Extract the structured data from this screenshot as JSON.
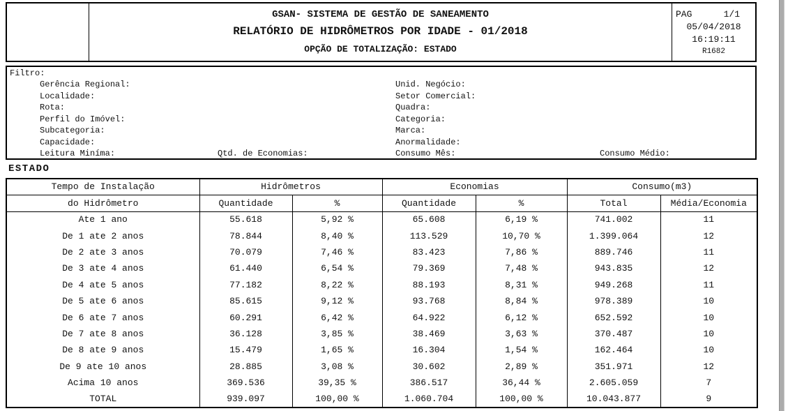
{
  "header": {
    "title_line1": "GSAN- SISTEMA DE GESTÃO DE SANEAMENTO",
    "title_line2": "RELATÓRIO DE HIDRÔMETROS POR IDADE - 01/2018",
    "title_line3": "OPÇÃO DE TOTALIZAÇÃO: ESTADO",
    "page_label": "PAG",
    "page_value": "1/1",
    "date": "05/04/2018",
    "time": "16:19:11",
    "report_code": "R1682"
  },
  "filter": {
    "label": "Filtro:",
    "left": [
      "Gerência Regional:",
      "Localidade:",
      "Rota:",
      "Perfil do Imóvel:",
      "Subcategoria:",
      "Capacidade:"
    ],
    "right": [
      "Unid. Negócio:",
      "Setor Comercial:",
      "Quadra:",
      "Categoria:",
      "Marca:",
      "Anormalidade:"
    ],
    "bottom": {
      "col1": "Leitura Miníma:",
      "col2": "Qtd. de Economias:",
      "col3": "Consumo Mês:",
      "col4": "Consumo Médio:"
    }
  },
  "section_label": "ESTADO",
  "table": {
    "group_headers": [
      "Tempo de Instalação",
      "Hidrômetros",
      "Economias",
      "Consumo(m3)"
    ],
    "sub_headers": [
      "do Hidrômetro",
      "Quantidade",
      "%",
      "Quantidade",
      "%",
      "Total",
      "Média/Economia"
    ],
    "rows": [
      [
        "Ate 1 ano",
        "55.618",
        "5,92 %",
        "65.608",
        "6,19 %",
        "741.002",
        "11"
      ],
      [
        "De 1 ate 2 anos",
        "78.844",
        "8,40 %",
        "113.529",
        "10,70 %",
        "1.399.064",
        "12"
      ],
      [
        "De 2 ate 3 anos",
        "70.079",
        "7,46 %",
        "83.423",
        "7,86 %",
        "889.746",
        "11"
      ],
      [
        "De 3 ate 4 anos",
        "61.440",
        "6,54 %",
        "79.369",
        "7,48 %",
        "943.835",
        "12"
      ],
      [
        "De 4 ate 5 anos",
        "77.182",
        "8,22 %",
        "88.193",
        "8,31 %",
        "949.268",
        "11"
      ],
      [
        "De 5 ate 6 anos",
        "85.615",
        "9,12 %",
        "93.768",
        "8,84 %",
        "978.389",
        "10"
      ],
      [
        "De 6 ate 7 anos",
        "60.291",
        "6,42 %",
        "64.922",
        "6,12 %",
        "652.592",
        "10"
      ],
      [
        "De 7 ate 8 anos",
        "36.128",
        "3,85 %",
        "38.469",
        "3,63 %",
        "370.487",
        "10"
      ],
      [
        "De 8 ate 9 anos",
        "15.479",
        "1,65 %",
        "16.304",
        "1,54 %",
        "162.464",
        "10"
      ],
      [
        "De 9 ate 10 anos",
        "28.885",
        "3,08 %",
        "30.602",
        "2,89 %",
        "351.971",
        "12"
      ],
      [
        "Acima 10 anos",
        "369.536",
        "39,35 %",
        "386.517",
        "36,44 %",
        "2.605.059",
        "7"
      ],
      [
        "TOTAL",
        "939.097",
        "100,00 %",
        "1.060.704",
        "100,00 %",
        "10.043.877",
        "9"
      ]
    ]
  }
}
